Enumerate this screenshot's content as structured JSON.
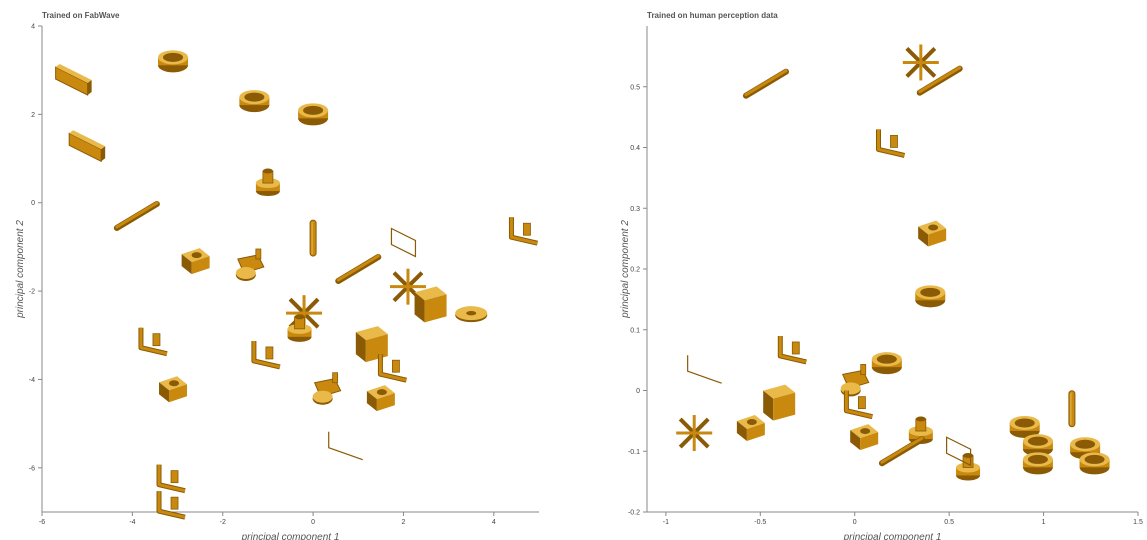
{
  "chart_data": [
    {
      "type": "scatter",
      "title": "Trained on FabWave",
      "xlabel": "principal component 1",
      "ylabel": "principal component 2",
      "xlim": [
        -6,
        5
      ],
      "ylim": [
        -7,
        4
      ],
      "x_ticks": [
        -6,
        -4,
        -2,
        0,
        2,
        4
      ],
      "y_ticks": [
        4,
        2,
        0,
        -2,
        -4,
        -6
      ],
      "grid": false,
      "points": [
        {
          "x": -5.3,
          "y": 2.8,
          "shape": "plate"
        },
        {
          "x": -3.1,
          "y": 3.2,
          "shape": "ring"
        },
        {
          "x": -5.0,
          "y": 1.3,
          "shape": "plate"
        },
        {
          "x": -1.3,
          "y": 2.3,
          "shape": "ring"
        },
        {
          "x": 0.0,
          "y": 2.0,
          "shape": "ring"
        },
        {
          "x": -1.0,
          "y": 0.4,
          "shape": "flange"
        },
        {
          "x": -3.9,
          "y": -0.3,
          "shape": "rod"
        },
        {
          "x": -2.6,
          "y": -1.3,
          "shape": "block"
        },
        {
          "x": -1.4,
          "y": -1.5,
          "shape": "clamp"
        },
        {
          "x": 0.0,
          "y": -0.8,
          "shape": "shaft"
        },
        {
          "x": 1.0,
          "y": -1.5,
          "shape": "rod"
        },
        {
          "x": 2.0,
          "y": -0.9,
          "shape": "frame"
        },
        {
          "x": 2.1,
          "y": -1.9,
          "shape": "cross"
        },
        {
          "x": 4.7,
          "y": -0.6,
          "shape": "bracket"
        },
        {
          "x": 2.6,
          "y": -2.3,
          "shape": "box"
        },
        {
          "x": 3.5,
          "y": -2.5,
          "shape": "disc"
        },
        {
          "x": -0.2,
          "y": -2.5,
          "shape": "cross"
        },
        {
          "x": -0.3,
          "y": -2.9,
          "shape": "flange"
        },
        {
          "x": 1.3,
          "y": -3.2,
          "shape": "box"
        },
        {
          "x": -3.5,
          "y": -3.1,
          "shape": "bracket"
        },
        {
          "x": -1.0,
          "y": -3.4,
          "shape": "bracket"
        },
        {
          "x": 1.8,
          "y": -3.7,
          "shape": "bracket"
        },
        {
          "x": -3.1,
          "y": -4.2,
          "shape": "block"
        },
        {
          "x": 0.3,
          "y": -4.3,
          "shape": "clamp"
        },
        {
          "x": 1.5,
          "y": -4.4,
          "shape": "block"
        },
        {
          "x": 0.7,
          "y": -5.5,
          "shape": "wire"
        },
        {
          "x": -3.1,
          "y": -6.2,
          "shape": "bracket"
        },
        {
          "x": -3.1,
          "y": -6.8,
          "shape": "bracket"
        }
      ]
    },
    {
      "type": "scatter",
      "title": "Trained on human perception data",
      "xlabel": "principal component 1",
      "ylabel": "principal component 2",
      "xlim": [
        -1.1,
        1.5
      ],
      "ylim": [
        -0.2,
        0.6
      ],
      "x_ticks": [
        "-1",
        "-0.5",
        "0",
        "0.5",
        "1",
        "1.5"
      ],
      "y_ticks": [
        "0.5",
        "0.4",
        "0.3",
        "0.2",
        "0.1",
        "0",
        "-0.1",
        "-0.2"
      ],
      "grid": false,
      "points": [
        {
          "x": 0.35,
          "y": 0.54,
          "shape": "cross"
        },
        {
          "x": 0.45,
          "y": 0.51,
          "shape": "rod"
        },
        {
          "x": -0.47,
          "y": 0.505,
          "shape": "rod"
        },
        {
          "x": 0.2,
          "y": 0.41,
          "shape": "bracket"
        },
        {
          "x": 0.41,
          "y": 0.26,
          "shape": "block"
        },
        {
          "x": 0.4,
          "y": 0.155,
          "shape": "ring"
        },
        {
          "x": -0.32,
          "y": 0.07,
          "shape": "bracket"
        },
        {
          "x": -0.8,
          "y": 0.035,
          "shape": "wire"
        },
        {
          "x": 0.17,
          "y": 0.045,
          "shape": "ring"
        },
        {
          "x": -0.4,
          "y": -0.02,
          "shape": "box"
        },
        {
          "x": 0.0,
          "y": 0.01,
          "shape": "clamp"
        },
        {
          "x": 0.03,
          "y": -0.02,
          "shape": "bracket"
        },
        {
          "x": -0.85,
          "y": -0.07,
          "shape": "cross"
        },
        {
          "x": -0.55,
          "y": -0.06,
          "shape": "block"
        },
        {
          "x": 0.05,
          "y": -0.075,
          "shape": "block"
        },
        {
          "x": 0.35,
          "y": -0.07,
          "shape": "flange"
        },
        {
          "x": 0.25,
          "y": -0.1,
          "shape": "rod"
        },
        {
          "x": 0.6,
          "y": -0.13,
          "shape": "flange"
        },
        {
          "x": 0.55,
          "y": -0.1,
          "shape": "frame"
        },
        {
          "x": 0.9,
          "y": -0.06,
          "shape": "ring"
        },
        {
          "x": 1.15,
          "y": -0.03,
          "shape": "shaft"
        },
        {
          "x": 0.97,
          "y": -0.09,
          "shape": "ring"
        },
        {
          "x": 0.97,
          "y": -0.12,
          "shape": "ring"
        },
        {
          "x": 1.22,
          "y": -0.095,
          "shape": "ring"
        },
        {
          "x": 1.27,
          "y": -0.12,
          "shape": "ring"
        }
      ]
    }
  ],
  "colors": {
    "part_fill": "#c8890e",
    "part_dark": "#8a5a05",
    "part_light": "#e9b94a",
    "axis": "#888888"
  }
}
